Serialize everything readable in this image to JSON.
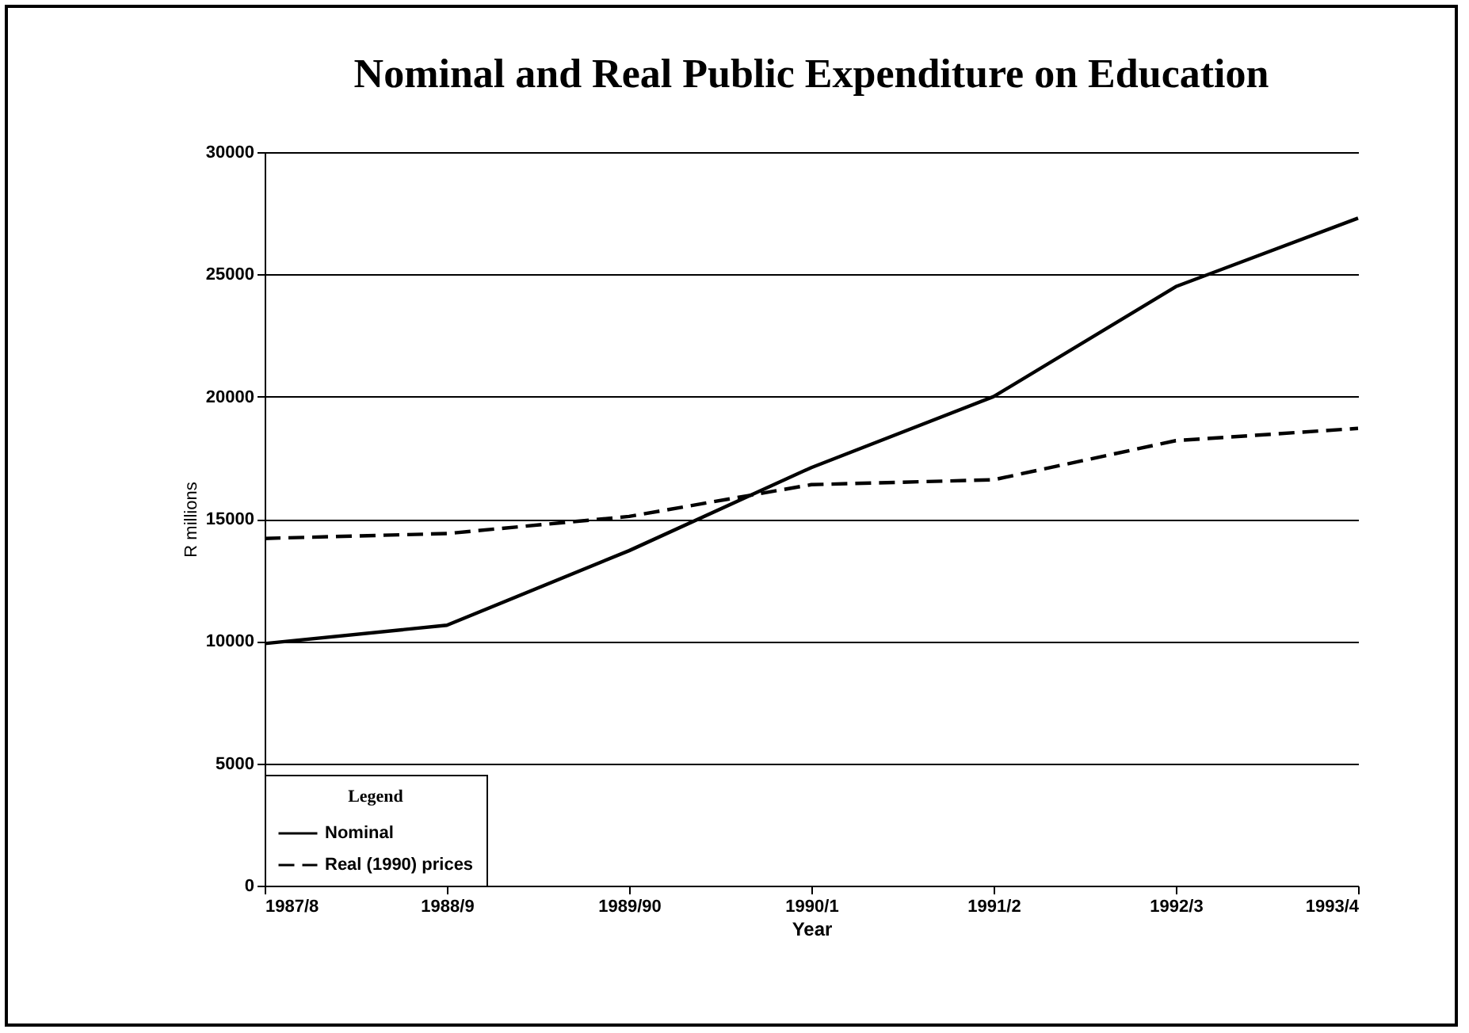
{
  "chart_data": {
    "type": "line",
    "title": "Nominal and Real Public Expenditure on Education",
    "xlabel": "Year",
    "ylabel": "R millions",
    "legend_title": "Legend",
    "categories": [
      "1987/8",
      "1988/9",
      "1989/90",
      "1990/1",
      "1991/2",
      "1992/3",
      "1993/4"
    ],
    "series": [
      {
        "name": "Nominal",
        "color": "#000000",
        "line_style": "solid",
        "values": [
          9900,
          10650,
          13700,
          17100,
          20000,
          24500,
          27300
        ]
      },
      {
        "name": "Real (1990) prices",
        "color": "#000000",
        "line_style": "dashed",
        "values": [
          14200,
          14400,
          15100,
          16400,
          16600,
          18200,
          18700
        ]
      }
    ],
    "ylim": [
      0,
      30000
    ],
    "yticks": [
      0,
      5000,
      10000,
      15000,
      20000,
      25000,
      30000
    ],
    "grid": "y",
    "legend": "bottom left",
    "marker": "none"
  }
}
